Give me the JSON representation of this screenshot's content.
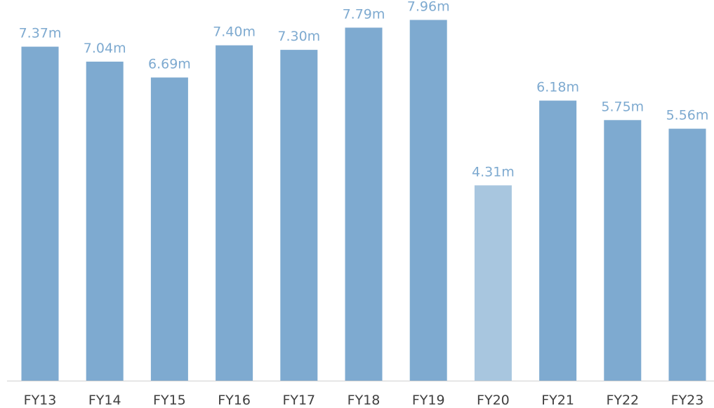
{
  "chart_data": {
    "type": "bar",
    "categories": [
      "FY13",
      "FY14",
      "FY15",
      "FY16",
      "FY17",
      "FY18",
      "FY19",
      "FY20",
      "FY21",
      "FY22",
      "FY23"
    ],
    "values": [
      7.37,
      7.04,
      6.69,
      7.4,
      7.3,
      7.79,
      7.96,
      4.31,
      6.18,
      5.75,
      5.56
    ],
    "value_labels": [
      "7.37m",
      "7.04m",
      "6.69m",
      "7.40m",
      "7.30m",
      "7.79m",
      "7.96m",
      "4.31m",
      "6.18m",
      "5.75m",
      "5.56m"
    ],
    "highlighted_categories": [
      "FY20"
    ],
    "title": "",
    "xlabel": "",
    "ylabel": "",
    "ylim": [
      0,
      8.4
    ],
    "grid": false,
    "legend": "none",
    "colors": {
      "bar": "#7eaad0",
      "bar_highlight": "#a8c6df",
      "value_label": "#7eaad0",
      "tick_label": "#404040",
      "axis_line": "#cfcfcf"
    }
  }
}
